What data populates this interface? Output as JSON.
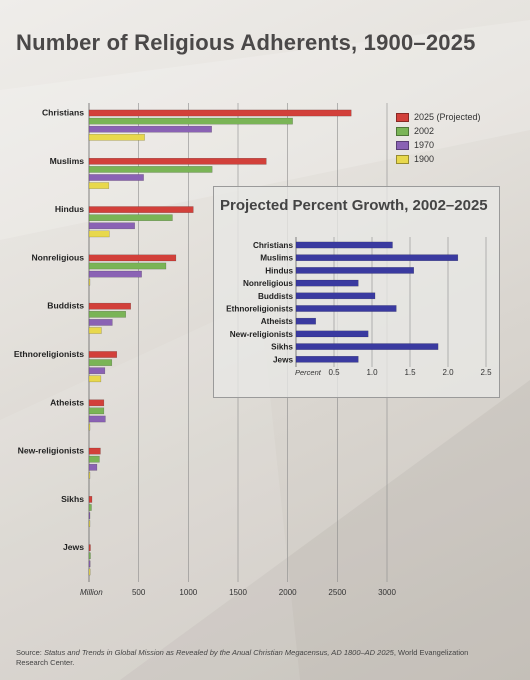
{
  "title": "Number of Religious Adherents, 1900–2025",
  "source": {
    "prefix": "Source: ",
    "italic": "Status and Trends in Global Mission as Revealed by the Anual Christian Megacensus, AD 1800–AD 2025",
    "suffix": ", World Evangelization Research Center."
  },
  "colors": {
    "2025 (Projected)": "#d2403a",
    "2002": "#7ab456",
    "1970": "#8a62b4",
    "1900": "#e8d84c",
    "inset_bar": "#3a3aa0"
  },
  "chart_data": [
    {
      "type": "bar",
      "orientation": "horizontal",
      "title": "Number of Religious Adherents, 1900–2025",
      "categories": [
        "Christians",
        "Muslims",
        "Hindus",
        "Nonreligious",
        "Buddists",
        "Ethnoreligionists",
        "Atheists",
        "New-religionists",
        "Sikhs",
        "Jews"
      ],
      "series": [
        {
          "name": "2025 (Projected)",
          "values": [
            2640,
            1785,
            1050,
            875,
            420,
            280,
            150,
            115,
            30,
            15
          ]
        },
        {
          "name": "2002",
          "values": [
            2050,
            1240,
            840,
            775,
            370,
            230,
            150,
            105,
            25,
            15
          ]
        },
        {
          "name": "1970",
          "values": [
            1235,
            550,
            460,
            530,
            235,
            160,
            165,
            80,
            10,
            12
          ]
        },
        {
          "name": "1900",
          "values": [
            560,
            200,
            205,
            3,
            125,
            120,
            3,
            6,
            3,
            12
          ]
        }
      ],
      "xlabel": "Million",
      "xticks": [
        500,
        1000,
        1500,
        2000,
        2500,
        3000
      ],
      "xlim": [
        0,
        3000
      ],
      "legend_position": "top-right",
      "grid": "vertical"
    },
    {
      "type": "bar",
      "orientation": "horizontal",
      "title": "Projected Percent Growth, 2002–2025",
      "categories": [
        "Christians",
        "Muslims",
        "Hindus",
        "Nonreligious",
        "Buddists",
        "Ethnoreligionists",
        "Atheists",
        "New-religionists",
        "Sikhs",
        "Jews"
      ],
      "values": [
        1.27,
        2.13,
        1.55,
        0.82,
        1.04,
        1.32,
        0.26,
        0.95,
        1.87,
        0.82
      ],
      "xlabel": "Percent",
      "xticks": [
        "0.5",
        "1.0",
        "1.5",
        "2.0",
        "2.5"
      ],
      "xlim": [
        0,
        2.5
      ],
      "grid": "vertical"
    }
  ]
}
